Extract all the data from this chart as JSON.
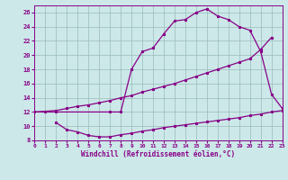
{
  "xlabel": "Windchill (Refroidissement éolien,°C)",
  "bg_color": "#cce8e8",
  "line_color": "#880088",
  "grid_color": "#99bbbb",
  "ylim": [
    8,
    27
  ],
  "xlim": [
    0,
    23
  ],
  "yticks": [
    8,
    10,
    12,
    14,
    16,
    18,
    20,
    22,
    24,
    26
  ],
  "xticks": [
    0,
    1,
    2,
    3,
    4,
    5,
    6,
    7,
    8,
    9,
    10,
    11,
    12,
    13,
    14,
    15,
    16,
    17,
    18,
    19,
    20,
    21,
    22,
    23
  ],
  "line1_x": [
    0,
    1,
    2,
    7,
    8,
    9,
    10,
    11,
    12,
    13,
    14,
    15,
    16,
    17,
    18,
    19,
    20,
    21,
    22,
    23
  ],
  "line1_y": [
    12,
    12,
    12,
    12,
    12,
    18,
    20.5,
    21,
    23,
    24.8,
    25,
    26,
    26.5,
    25.5,
    25,
    24,
    23.5,
    20.5,
    14.5,
    12.5
  ],
  "line2_x": [
    0,
    2,
    3,
    4,
    5,
    6,
    7,
    8,
    9,
    10,
    11,
    12,
    13,
    14,
    15,
    16,
    17,
    18,
    19,
    20,
    21,
    22
  ],
  "line2_y": [
    12,
    12.2,
    12.5,
    12.8,
    13.0,
    13.3,
    13.6,
    14.0,
    14.3,
    14.8,
    15.2,
    15.6,
    16.0,
    16.5,
    17.0,
    17.5,
    18.0,
    18.5,
    19.0,
    19.5,
    20.8,
    22.5
  ],
  "line3_x": [
    2,
    3,
    4,
    5,
    6,
    7,
    8,
    9,
    10,
    11,
    12,
    13,
    14,
    15,
    16,
    17,
    18,
    19,
    20,
    21,
    22,
    23
  ],
  "line3_y": [
    10.5,
    9.5,
    9.2,
    8.7,
    8.5,
    8.5,
    8.8,
    9.0,
    9.3,
    9.5,
    9.8,
    10.0,
    10.2,
    10.4,
    10.6,
    10.8,
    11.0,
    11.2,
    11.5,
    11.7,
    12.0,
    12.2
  ]
}
